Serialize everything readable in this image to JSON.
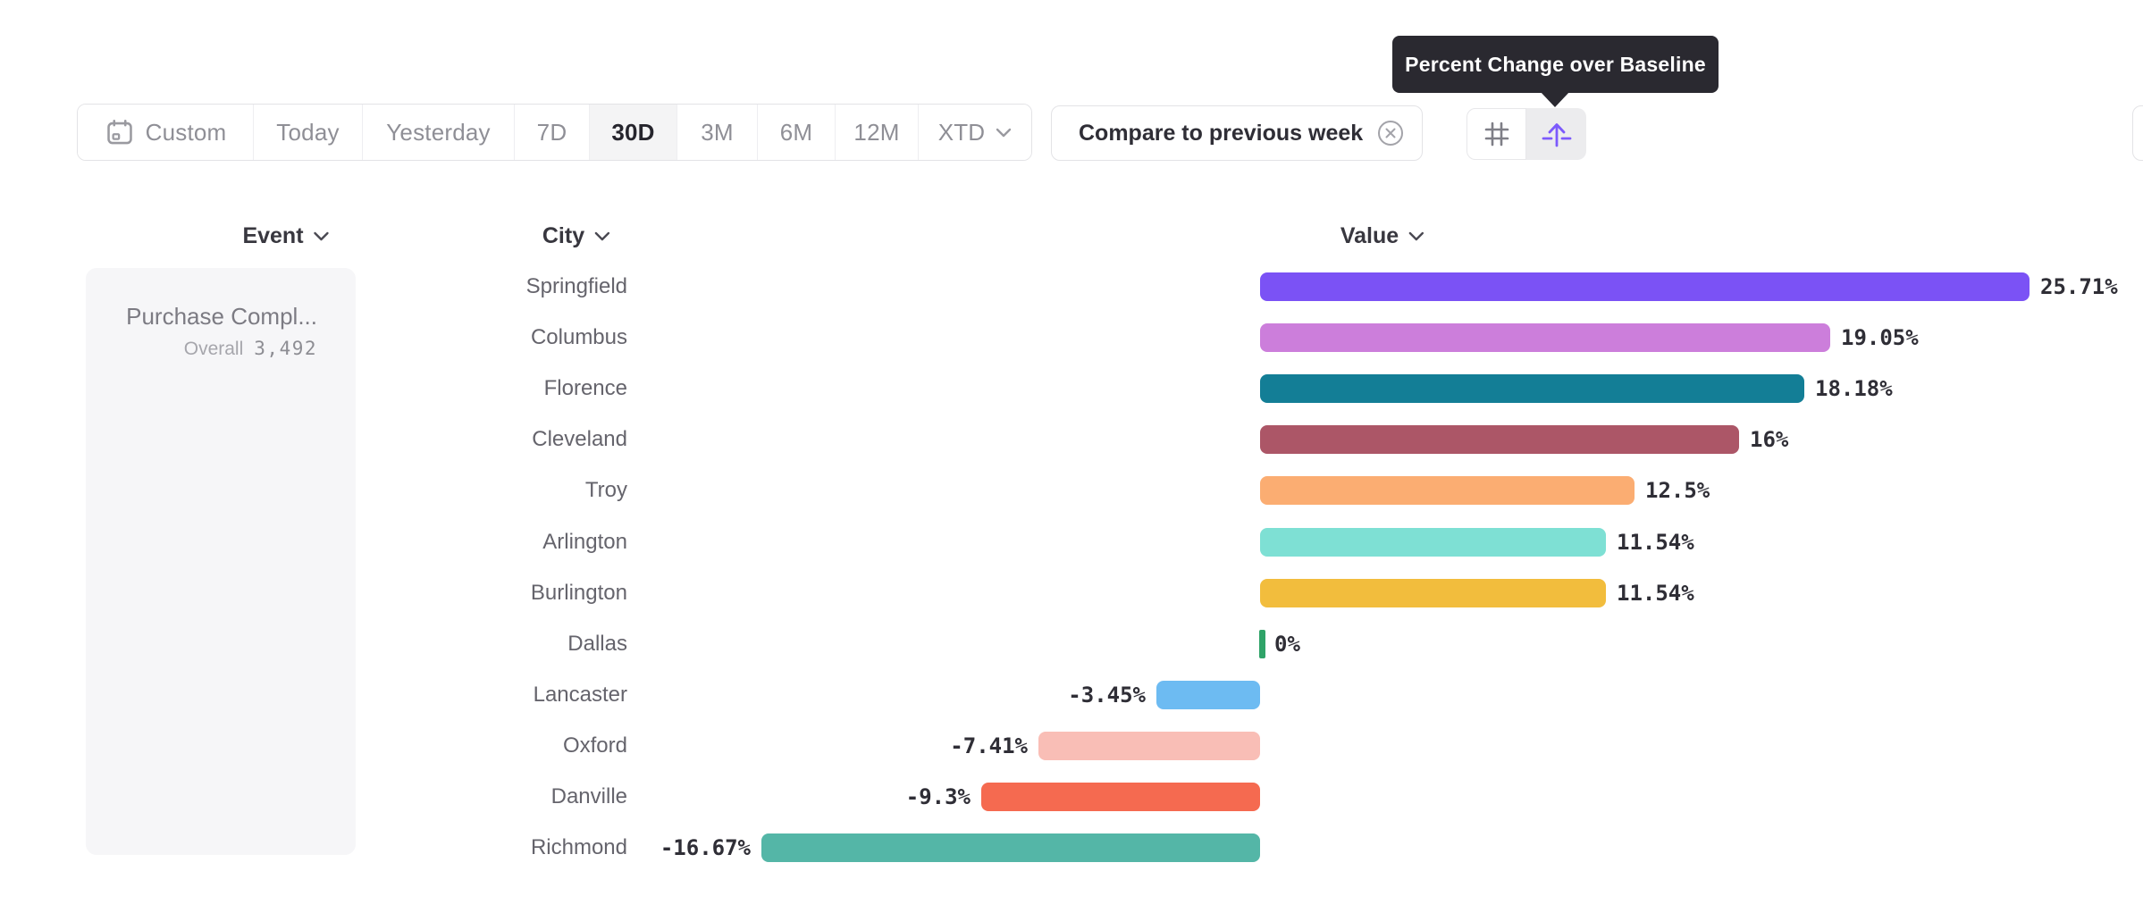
{
  "tooltip": {
    "text": "Percent Change over Baseline"
  },
  "toolbar": {
    "items": [
      {
        "label": "Custom",
        "icon": "calendar-icon",
        "selected": false
      },
      {
        "label": "Today",
        "selected": false
      },
      {
        "label": "Yesterday",
        "selected": false
      },
      {
        "label": "7D",
        "selected": false
      },
      {
        "label": "30D",
        "selected": true
      },
      {
        "label": "3M",
        "selected": false
      },
      {
        "label": "6M",
        "selected": false
      },
      {
        "label": "12M",
        "selected": false
      },
      {
        "label": "XTD",
        "icon_right": "chevron-down-icon",
        "selected": false
      }
    ]
  },
  "compare_chip": {
    "label": "Compare to previous week",
    "icon": "close-circle-icon"
  },
  "view_toggle": {
    "options": [
      {
        "name": "numeric-view",
        "icon": "hash-icon",
        "selected": false
      },
      {
        "name": "percent-change-view",
        "icon": "arrow-up-over-baseline-icon",
        "selected": true
      }
    ]
  },
  "columns": [
    {
      "label": "Event"
    },
    {
      "label": "City"
    },
    {
      "label": "Value"
    }
  ],
  "event_panel": {
    "event_name": "Purchase Compl...",
    "overall_label": "Overall",
    "overall_value": "3,492"
  },
  "chart_data": {
    "type": "bar",
    "orientation": "horizontal",
    "title": "Percent Change over Baseline",
    "categories": [
      "Springfield",
      "Columbus",
      "Florence",
      "Cleveland",
      "Troy",
      "Arlington",
      "Burlington",
      "Dallas",
      "Lancaster",
      "Oxford",
      "Danville",
      "Richmond"
    ],
    "values": [
      25.71,
      19.05,
      18.18,
      16,
      12.5,
      11.54,
      11.54,
      0,
      -3.45,
      -7.41,
      -9.3,
      -16.67
    ],
    "value_labels": [
      "25.71%",
      "19.05%",
      "18.18%",
      "16%",
      "12.5%",
      "11.54%",
      "11.54%",
      "0%",
      "-3.45%",
      "-7.41%",
      "-9.3%",
      "-16.67%"
    ],
    "bar_colors": [
      "#7b52f5",
      "#cc7edb",
      "#137e96",
      "#ac5667",
      "#fbad72",
      "#7ee0d4",
      "#f2bd3d",
      "#2fa368",
      "#6dbbf2",
      "#f9beb6",
      "#f56a50",
      "#54b6a7"
    ],
    "zero_tick_color": "#2fa368",
    "xlim": [
      -16.67,
      25.71
    ],
    "grid": false,
    "legend": false
  },
  "colors": {
    "accent_purple": "#7c5afc",
    "tooltip_bg": "#2a2930",
    "border": "#e3e3e6",
    "selected_bg": "#f4f4f5",
    "text_dark": "#2f2e36",
    "text_gray": "#8f8f96"
  }
}
